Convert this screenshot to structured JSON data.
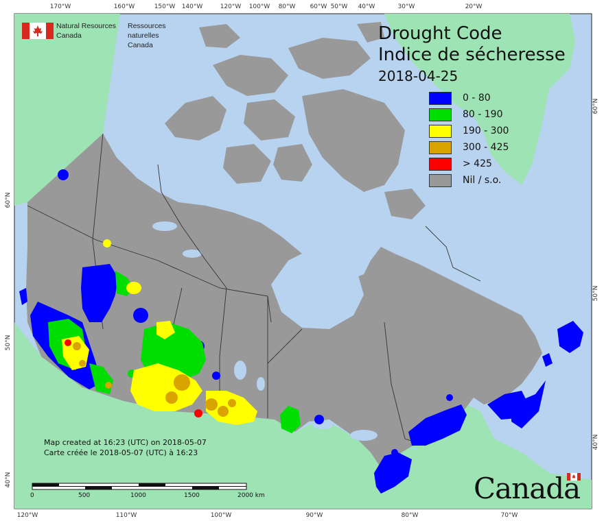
{
  "title": {
    "line1": "Drought Code",
    "line2": "Indice de sécheresse",
    "date": "2018-04-25"
  },
  "header": {
    "dept_en_line1": "Natural Resources",
    "dept_en_line2": "Canada",
    "dept_fr_line1": "Ressources naturelles",
    "dept_fr_line2": "Canada"
  },
  "legend": [
    {
      "label": "0 - 80",
      "color": "#0000ff"
    },
    {
      "label": "80 - 190",
      "color": "#00dd00"
    },
    {
      "label": "190 - 300",
      "color": "#ffff00"
    },
    {
      "label": "300 - 425",
      "color": "#d9a300"
    },
    {
      "label": "> 425",
      "color": "#ff0000"
    },
    {
      "label": "Nil / s.o.",
      "color": "#999999"
    }
  ],
  "credits": {
    "line1": "Map created at 16:23 (UTC) on 2018-05-07",
    "line2": "Carte créée le 2018-05-07 (UTC) à 16:23"
  },
  "scale": {
    "labels": [
      "0",
      "500",
      "1000",
      "1500",
      "2000 km"
    ]
  },
  "axes": {
    "top": [
      "170°W",
      "160°W",
      "150°W",
      "140°W",
      "120°W",
      "100°W",
      "80°W",
      "60°W",
      "50°W",
      "40°W",
      "30°W",
      "20°W"
    ],
    "bottom": [
      "120°W",
      "110°W",
      "100°W",
      "90°W",
      "80°W",
      "70°W"
    ],
    "left": [
      "60°N",
      "50°N",
      "40°N"
    ],
    "right": [
      "60°N",
      "50°N",
      "40°N"
    ]
  },
  "wordmark": "Canada",
  "colors": {
    "water": "#b8d3f0",
    "land_other": "#9de3b4",
    "land_canada": "#999999",
    "boundary": "#333333"
  }
}
